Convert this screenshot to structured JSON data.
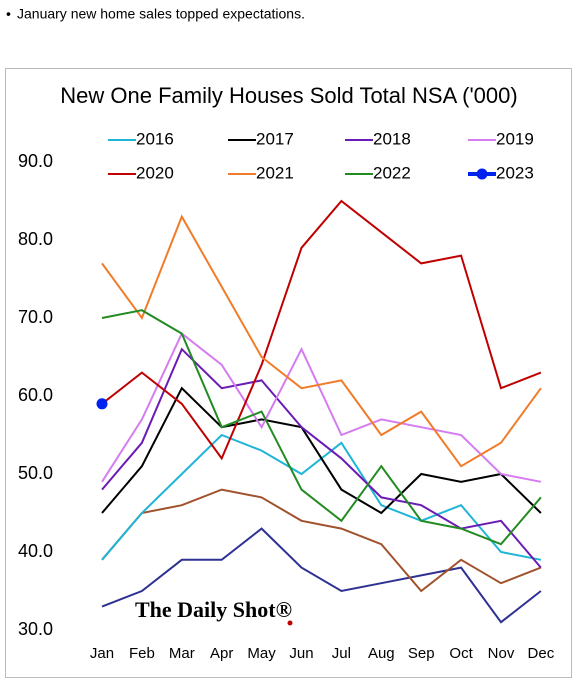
{
  "header": "January new home sales topped expectations.",
  "chart_data": {
    "type": "line",
    "title": "New One Family Houses Sold Total NSA ('000)",
    "watermark": "The Daily Shot®",
    "categories": [
      "Jan",
      "Feb",
      "Mar",
      "Apr",
      "May",
      "Jun",
      "Jul",
      "Aug",
      "Sep",
      "Oct",
      "Nov",
      "Dec"
    ],
    "ylim": [
      30,
      90
    ],
    "yticks": [
      {
        "value": 30,
        "label": "30.0"
      },
      {
        "value": 40,
        "label": "40.0"
      },
      {
        "value": 50,
        "label": "50.0"
      },
      {
        "value": 60,
        "label": "60.0"
      },
      {
        "value": 70,
        "label": "70.0"
      },
      {
        "value": 80,
        "label": "80.0"
      },
      {
        "value": 90,
        "label": "90.0"
      }
    ],
    "grid": false,
    "series": [
      {
        "color": "#2e3192",
        "values": [
          33,
          35,
          39,
          39,
          43,
          38,
          35,
          36,
          37,
          38,
          31,
          35
        ]
      },
      {
        "color": "#a0522d",
        "values": [
          39,
          45,
          46,
          48,
          47,
          44,
          43,
          41,
          35,
          39,
          36,
          38
        ]
      },
      {
        "name": "2016",
        "color": "#1fb5d6",
        "values": [
          39,
          45,
          50,
          55,
          53,
          50,
          54,
          46,
          44,
          46,
          40,
          39
        ]
      },
      {
        "name": "2017",
        "color": "#000000",
        "values": [
          45,
          51,
          61,
          56,
          57,
          56,
          48,
          45,
          50,
          49,
          50,
          45
        ]
      },
      {
        "name": "2018",
        "color": "#6a1bb5",
        "values": [
          48,
          54,
          66,
          61,
          62,
          56,
          52,
          47,
          46,
          43,
          44,
          38
        ]
      },
      {
        "name": "2019",
        "color": "#d47cf0",
        "values": [
          49,
          57,
          68,
          64,
          56,
          66,
          55,
          57,
          56,
          55,
          50,
          49
        ]
      },
      {
        "name": "2020",
        "color": "#c00000",
        "values": [
          59,
          63,
          59,
          52,
          64,
          79,
          85,
          81,
          77,
          78,
          61,
          63
        ]
      },
      {
        "name": "2021",
        "color": "#f07c2a",
        "values": [
          77,
          70,
          83,
          74,
          65,
          61,
          62,
          55,
          58,
          51,
          54,
          61
        ]
      },
      {
        "name": "2022",
        "color": "#228b22",
        "values": [
          70,
          71,
          68,
          56,
          58,
          48,
          44,
          51,
          44,
          43,
          41,
          47
        ]
      },
      {
        "name": "2023",
        "color": "#0022ee",
        "marker": "circle",
        "values": [
          59,
          null,
          null,
          null,
          null,
          null,
          null,
          null,
          null,
          null,
          null,
          null
        ]
      }
    ]
  }
}
